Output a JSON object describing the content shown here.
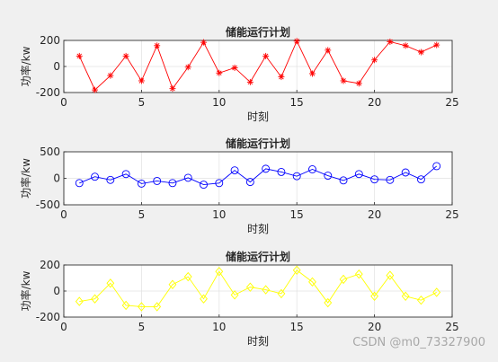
{
  "chart_data": [
    {
      "type": "line",
      "title": "储能运行计划",
      "xlabel": "时刻",
      "ylabel": "功率/kw",
      "xlim": [
        0,
        25
      ],
      "ylim": [
        -200,
        200
      ],
      "xticks": [
        "0",
        "5",
        "10",
        "15",
        "20",
        "25"
      ],
      "yticks": [
        "-200",
        "0",
        "200"
      ],
      "grid": true,
      "series": [
        {
          "color": "#ff0000",
          "marker": "star",
          "x": [
            1,
            2,
            3,
            4,
            5,
            6,
            7,
            8,
            9,
            10,
            11,
            12,
            13,
            14,
            15,
            16,
            17,
            18,
            19,
            20,
            21,
            22,
            23,
            24
          ],
          "y": [
            80,
            -180,
            -70,
            80,
            -110,
            160,
            -170,
            -5,
            185,
            -50,
            -10,
            -120,
            80,
            -80,
            195,
            -55,
            125,
            -110,
            -130,
            50,
            190,
            160,
            110,
            165
          ]
        }
      ]
    },
    {
      "type": "line",
      "title": "储能运行计划",
      "xlabel": "时刻",
      "ylabel": "功率/kw",
      "xlim": [
        0,
        25
      ],
      "ylim": [
        -500,
        500
      ],
      "xticks": [
        "0",
        "5",
        "10",
        "15",
        "20",
        "25"
      ],
      "yticks": [
        "-500",
        "0",
        "500"
      ],
      "grid": true,
      "series": [
        {
          "color": "#0000ff",
          "marker": "circle",
          "x": [
            1,
            2,
            3,
            4,
            5,
            6,
            7,
            8,
            9,
            10,
            11,
            12,
            13,
            14,
            15,
            16,
            17,
            18,
            19,
            20,
            21,
            22,
            23,
            24
          ],
          "y": [
            -90,
            30,
            -30,
            80,
            -100,
            -50,
            -90,
            10,
            -120,
            -90,
            150,
            -70,
            180,
            120,
            40,
            170,
            50,
            -40,
            80,
            -20,
            -30,
            110,
            -20,
            230
          ]
        }
      ]
    },
    {
      "type": "line",
      "title": "储能运行计划",
      "xlabel": "时刻",
      "ylabel": "功率/kw",
      "xlim": [
        0,
        25
      ],
      "ylim": [
        -200,
        200
      ],
      "xticks": [
        "0",
        "5",
        "10",
        "15",
        "20",
        "25"
      ],
      "yticks": [
        "-200",
        "0",
        "200"
      ],
      "grid": true,
      "series": [
        {
          "color": "#ffff00",
          "marker": "diamond",
          "x": [
            1,
            2,
            3,
            4,
            5,
            6,
            7,
            8,
            9,
            10,
            11,
            12,
            13,
            14,
            15,
            16,
            17,
            18,
            19,
            20,
            21,
            22,
            23,
            24
          ],
          "y": [
            -80,
            -60,
            60,
            -110,
            -120,
            -120,
            50,
            110,
            -60,
            150,
            -30,
            30,
            10,
            -20,
            160,
            70,
            -90,
            90,
            130,
            -40,
            120,
            -40,
            -70,
            -10
          ]
        }
      ]
    }
  ],
  "watermark": "CSDN @m0_73327900"
}
